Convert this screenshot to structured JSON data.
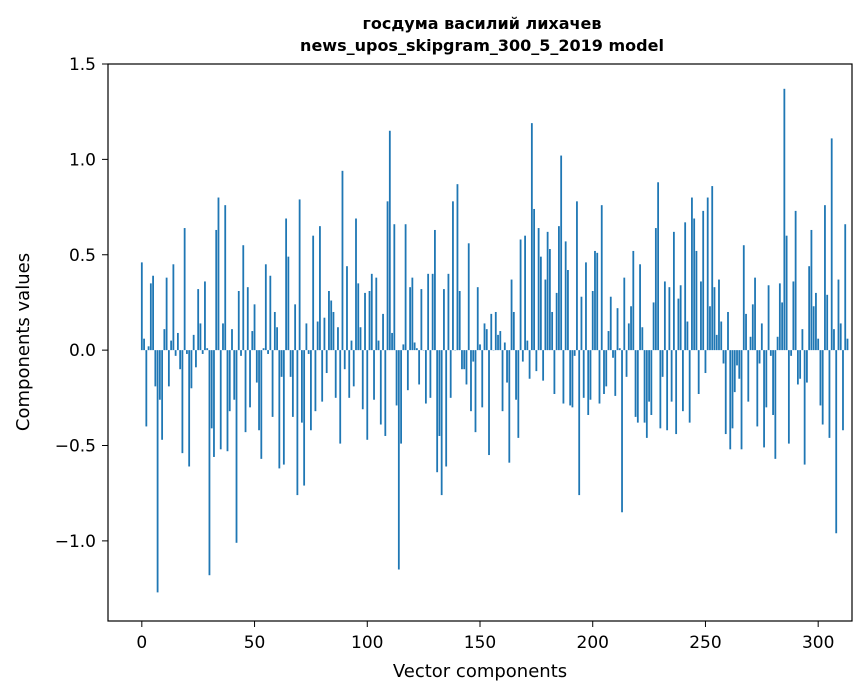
{
  "chart_data": {
    "type": "bar",
    "title_line1": "госдума василий лихачев",
    "title_line2": "news_upos_skipgram_300_5_2019 model",
    "xlabel": "Vector components",
    "ylabel": "Components values",
    "xlim": [
      -15,
      315
    ],
    "ylim": [
      -1.42,
      1.5
    ],
    "xticks": [
      0,
      50,
      100,
      150,
      200,
      250,
      300
    ],
    "yticks": [
      1.5,
      1.0,
      0.5,
      0.0,
      -0.5,
      -1.0
    ],
    "ytick_labels": [
      "1.5",
      "1.0",
      "0.5",
      "0.0",
      "−0.5",
      "−1.0"
    ],
    "grid": false,
    "bar_color": "#1f77b4",
    "values": [
      0.46,
      0.06,
      -0.4,
      0.02,
      0.35,
      0.39,
      -0.19,
      -1.27,
      -0.26,
      -0.47,
      0.11,
      0.38,
      -0.19,
      0.05,
      0.45,
      -0.03,
      0.09,
      -0.1,
      -0.54,
      0.64,
      -0.02,
      -0.61,
      -0.2,
      0.08,
      -0.09,
      0.32,
      0.14,
      -0.02,
      0.36,
      0.01,
      -1.18,
      -0.41,
      -0.56,
      0.63,
      0.8,
      -0.52,
      0.14,
      0.76,
      -0.53,
      -0.32,
      0.11,
      -0.26,
      -1.01,
      0.31,
      -0.03,
      0.55,
      -0.43,
      0.33,
      -0.3,
      0.1,
      0.24,
      -0.17,
      -0.42,
      -0.57,
      0.01,
      0.45,
      -0.02,
      0.39,
      -0.35,
      0.2,
      0.12,
      -0.62,
      -0.14,
      -0.6,
      0.69,
      0.49,
      -0.14,
      -0.35,
      0.24,
      -0.76,
      0.79,
      -0.38,
      -0.71,
      0.14,
      -0.02,
      -0.42,
      0.6,
      -0.32,
      0.15,
      0.65,
      -0.27,
      0.17,
      -0.12,
      0.31,
      0.26,
      0.2,
      -0.25,
      0.12,
      -0.49,
      0.94,
      -0.1,
      0.44,
      -0.25,
      0.05,
      -0.19,
      0.69,
      0.35,
      0.12,
      -0.31,
      0.3,
      -0.47,
      0.31,
      0.4,
      -0.26,
      0.38,
      0.05,
      -0.39,
      0.19,
      -0.45,
      0.78,
      1.15,
      0.09,
      0.66,
      -0.29,
      -1.15,
      -0.49,
      0.03,
      0.66,
      -0.21,
      0.33,
      0.38,
      0.04,
      0.01,
      -0.18,
      0.32,
      0.0,
      -0.28,
      0.4,
      -0.25,
      0.4,
      0.63,
      -0.64,
      -0.45,
      -0.76,
      0.32,
      -0.61,
      0.4,
      -0.25,
      0.78,
      0.0,
      0.87,
      0.31,
      -0.1,
      -0.1,
      -0.18,
      0.56,
      -0.32,
      -0.06,
      -0.43,
      0.33,
      0.03,
      -0.3,
      0.14,
      0.11,
      -0.55,
      0.19,
      0.0,
      0.2,
      0.08,
      0.1,
      -0.32,
      0.04,
      -0.17,
      -0.59,
      0.37,
      0.2,
      -0.26,
      -0.46,
      0.58,
      -0.06,
      0.6,
      0.05,
      -0.15,
      1.19,
      0.74,
      -0.11,
      0.64,
      0.49,
      -0.16,
      0.37,
      0.62,
      0.53,
      0.2,
      -0.23,
      0.3,
      0.65,
      1.02,
      -0.28,
      0.57,
      0.42,
      -0.29,
      -0.3,
      -0.03,
      0.78,
      -0.76,
      0.28,
      -0.25,
      0.46,
      -0.34,
      -0.26,
      0.31,
      0.52,
      0.51,
      -0.28,
      0.76,
      -0.23,
      -0.19,
      0.1,
      0.28,
      -0.04,
      -0.24,
      0.22,
      0.01,
      -0.85,
      0.38,
      -0.14,
      0.14,
      0.23,
      0.52,
      -0.35,
      -0.38,
      0.45,
      0.12,
      -0.38,
      -0.46,
      -0.27,
      -0.34,
      0.25,
      0.64,
      0.88,
      -0.41,
      -0.14,
      0.36,
      -0.42,
      0.33,
      -0.27,
      0.62,
      -0.44,
      0.27,
      0.34,
      -0.32,
      0.67,
      0.15,
      -0.38,
      0.8,
      0.69,
      0.52,
      -0.23,
      0.36,
      0.73,
      -0.12,
      0.8,
      0.23,
      0.86,
      0.33,
      0.08,
      0.37,
      0.15,
      -0.07,
      -0.44,
      0.2,
      -0.52,
      -0.41,
      -0.22,
      -0.08,
      -0.15,
      -0.52,
      0.55,
      0.19,
      -0.27,
      0.07,
      0.24,
      0.38,
      -0.4,
      -0.07,
      0.14,
      -0.51,
      -0.3,
      0.34,
      -0.03,
      -0.34,
      -0.57,
      0.07,
      0.35,
      0.25,
      1.37,
      0.6,
      -0.49,
      -0.03,
      0.36,
      0.73,
      -0.18,
      -0.15,
      0.11,
      -0.6,
      -0.17,
      0.44,
      0.63,
      0.23,
      0.3,
      0.06,
      -0.29,
      -0.39,
      0.76,
      0.29,
      -0.46,
      1.11,
      0.11,
      -0.96,
      0.37,
      0.14,
      -0.42,
      0.66,
      0.06
    ]
  }
}
